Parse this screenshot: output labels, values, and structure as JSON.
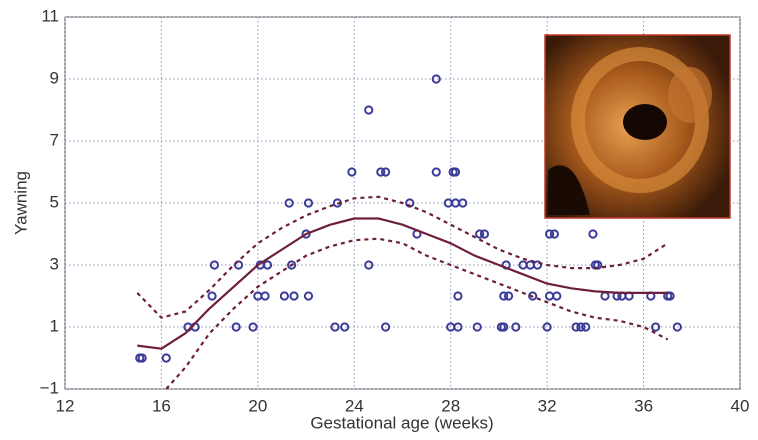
{
  "chart_data": {
    "type": "scatter",
    "xlabel": "Gestational age (weeks)",
    "ylabel": "Yawning",
    "xlim": [
      12,
      40
    ],
    "ylim": [
      -1,
      11
    ],
    "xticks": [
      12,
      16,
      20,
      24,
      28,
      32,
      36,
      40
    ],
    "yticks": [
      {
        "value": -1,
        "label": "−1"
      },
      1,
      3,
      5,
      7,
      9,
      11
    ],
    "grid": true,
    "series": [
      {
        "style": "markers",
        "color": "#3b3b98",
        "x": [
          15.1,
          15.2,
          16.2,
          17.1,
          17.4,
          18.1,
          18.2,
          19.1,
          19.2,
          19.8,
          20.0,
          20.1,
          20.3,
          20.4,
          21.1,
          21.3,
          21.4,
          21.5,
          22.0,
          22.1,
          22.1,
          23.2,
          23.3,
          23.6,
          23.9,
          24.6,
          24.6,
          25.1,
          25.3,
          25.3,
          26.3,
          26.6,
          27.4,
          27.4,
          27.9,
          28.0,
          28.1,
          28.2,
          28.2,
          28.3,
          28.3,
          28.5,
          29.1,
          29.2,
          29.4,
          30.1,
          30.2,
          30.2,
          30.3,
          30.4,
          30.7,
          31.0,
          31.3,
          31.4,
          31.6,
          32.0,
          32.1,
          32.1,
          32.3,
          32.4,
          33.2,
          33.4,
          33.6,
          33.9,
          34.0,
          34.1,
          34.4,
          34.9,
          35.1,
          35.4,
          36.3,
          36.5,
          37.0,
          37.1,
          37.4
        ],
        "values": [
          0,
          0,
          0,
          1,
          1,
          2,
          3,
          1,
          3,
          1,
          2,
          3,
          2,
          3,
          2,
          5,
          3,
          2,
          4,
          5,
          2,
          1,
          5,
          1,
          6,
          8,
          3,
          6,
          6,
          1,
          5,
          4,
          9,
          6,
          5,
          1,
          6,
          6,
          5,
          2,
          1,
          5,
          1,
          4,
          4,
          1,
          2,
          1,
          3,
          2,
          1,
          3,
          3,
          2,
          3,
          1,
          4,
          2,
          4,
          2,
          1,
          1,
          1,
          4,
          3,
          3,
          2,
          2,
          2,
          2,
          2,
          1,
          2,
          2,
          1
        ]
      },
      {
        "style": "solid",
        "color": "#6e1f3c",
        "x": [
          15,
          16,
          17,
          18,
          19,
          20,
          21,
          22,
          23,
          24,
          25,
          26,
          27,
          28,
          29,
          30,
          31,
          32,
          33,
          34,
          35,
          36,
          37
        ],
        "values": [
          0.4,
          0.3,
          0.8,
          1.6,
          2.3,
          3.0,
          3.5,
          4.0,
          4.3,
          4.5,
          4.5,
          4.3,
          4.0,
          3.7,
          3.3,
          3.0,
          2.7,
          2.4,
          2.25,
          2.15,
          2.1,
          2.1,
          2.1
        ]
      },
      {
        "style": "dashed",
        "color": "#6e1f3c",
        "x": [
          15,
          16,
          17,
          18,
          19,
          20,
          21,
          22,
          23,
          24,
          25,
          26,
          27,
          28,
          29,
          30,
          31,
          32,
          33,
          34,
          35,
          36,
          37
        ],
        "values": [
          2.1,
          1.3,
          1.5,
          2.2,
          3.0,
          3.7,
          4.2,
          4.6,
          4.9,
          5.15,
          5.2,
          5.0,
          4.7,
          4.3,
          3.9,
          3.5,
          3.2,
          3.0,
          2.9,
          2.9,
          3.0,
          3.2,
          3.7
        ]
      },
      {
        "style": "dashed",
        "color": "#6e1f3c",
        "x": [
          16.2,
          17,
          18,
          19,
          20,
          21,
          22,
          23,
          24,
          25,
          26,
          27,
          28,
          29,
          30,
          31,
          32,
          33,
          34,
          35,
          36,
          37
        ],
        "values": [
          -1,
          -0.3,
          0.8,
          1.6,
          2.3,
          2.8,
          3.3,
          3.6,
          3.8,
          3.85,
          3.7,
          3.3,
          3.0,
          2.7,
          2.4,
          2.1,
          1.8,
          1.5,
          1.3,
          1.2,
          1.0,
          0.6
        ]
      }
    ]
  }
}
